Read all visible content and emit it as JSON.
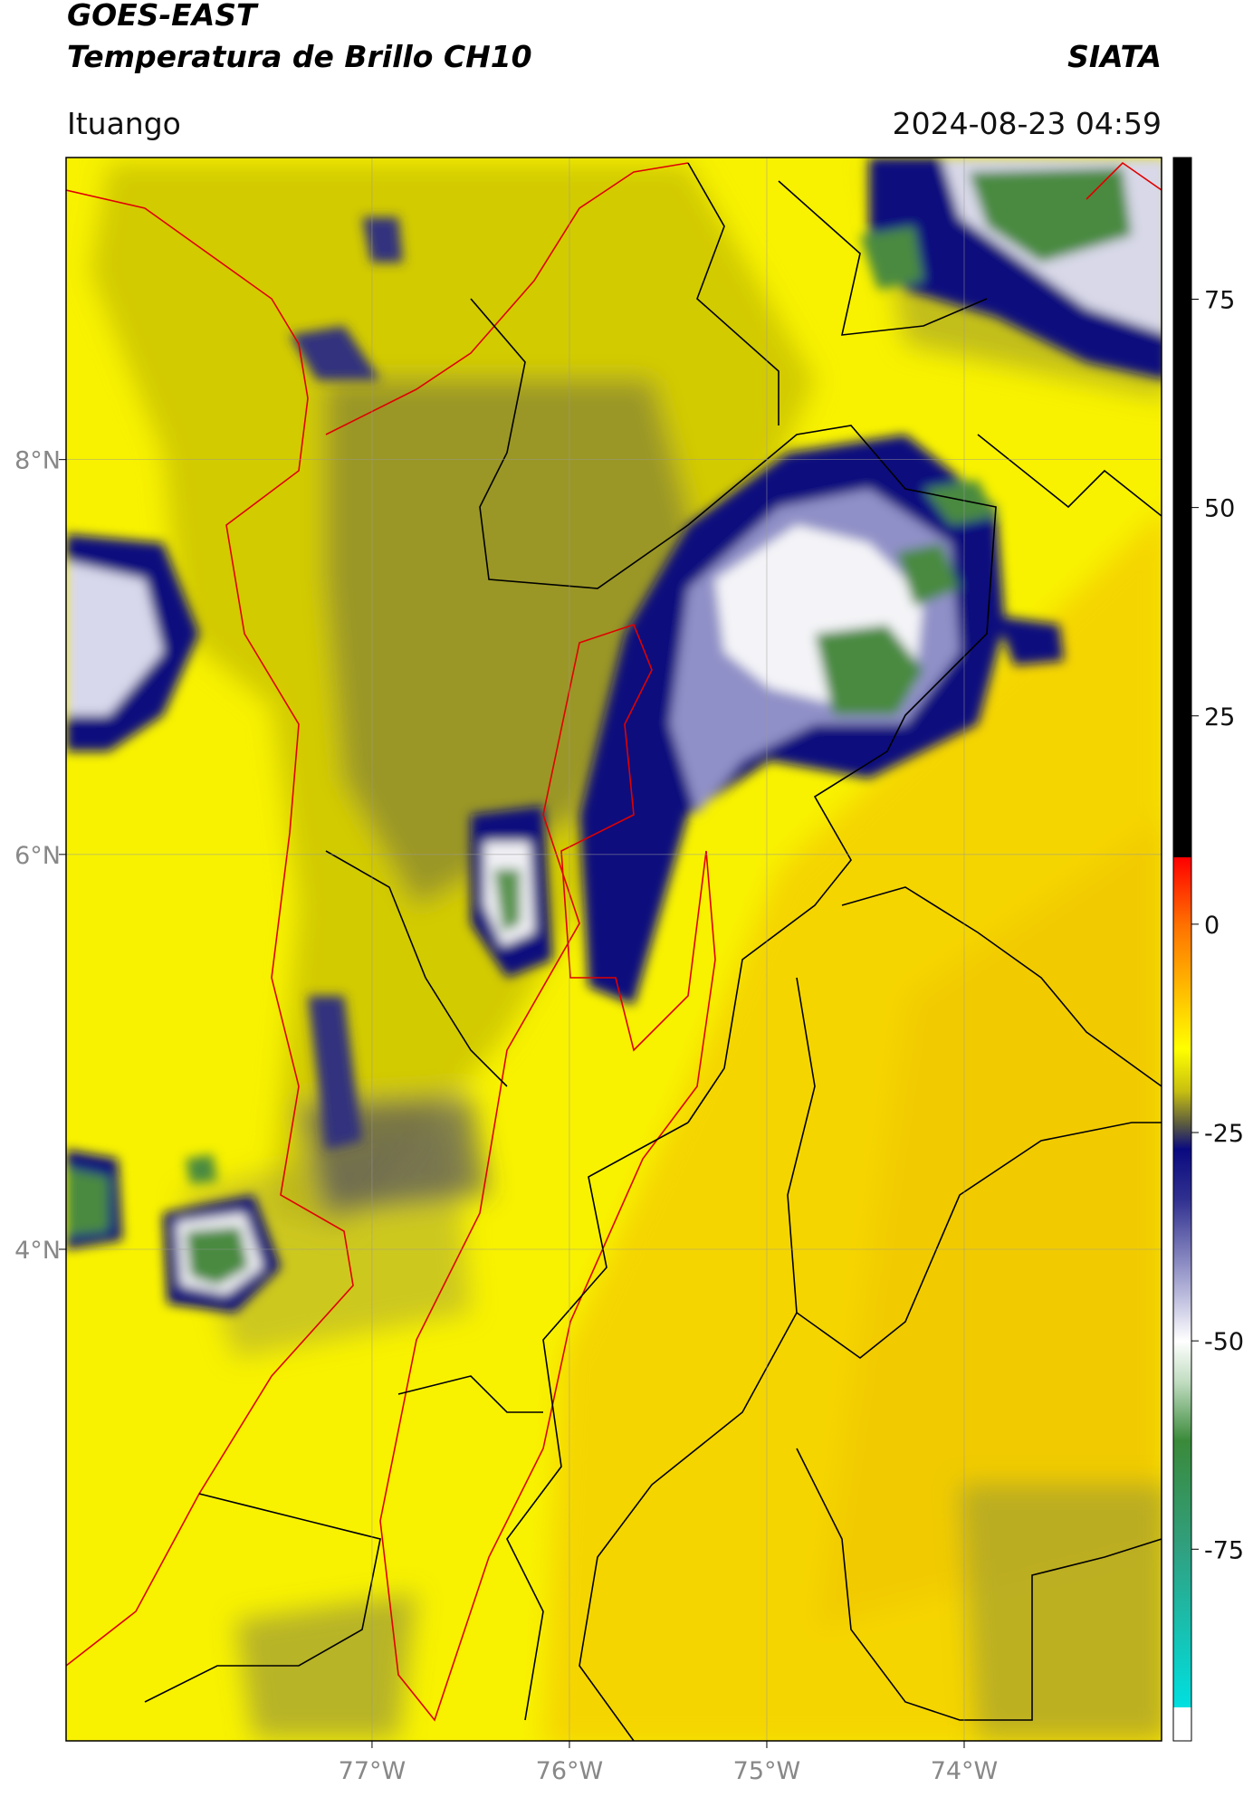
{
  "header": {
    "title": "GOES-EAST",
    "subtitle": "Temperatura de Brillo CH10",
    "agency": "SIATA",
    "location": "Ituango",
    "datetime": "2024-08-23 04:59"
  },
  "map": {
    "xlim": [
      -78.55,
      -73.0
    ],
    "ylim": [
      1.51,
      9.53
    ],
    "xticks": [
      {
        "value": -77,
        "label": "77°W"
      },
      {
        "value": -76,
        "label": "76°W"
      },
      {
        "value": -75,
        "label": "75°W"
      },
      {
        "value": -74,
        "label": "74°W"
      }
    ],
    "yticks": [
      {
        "value": 8,
        "label": "8°N"
      },
      {
        "value": 6,
        "label": "6°N"
      },
      {
        "value": 4,
        "label": "4°N"
      }
    ],
    "grid": true
  },
  "colorbar": {
    "lim": [
      -98,
      92
    ],
    "ticks": [
      75,
      50,
      25,
      0,
      -25,
      -50,
      -75
    ],
    "colormap": [
      [
        92,
        "#000000"
      ],
      [
        8,
        "#000000"
      ],
      [
        8,
        "#ff0000"
      ],
      [
        0,
        "#ff7000"
      ],
      [
        -10,
        "#ffd000"
      ],
      [
        -15,
        "#ffff00"
      ],
      [
        -20,
        "#c8c010"
      ],
      [
        -24,
        "#5a5a40"
      ],
      [
        -27,
        "#0a0a80"
      ],
      [
        -33,
        "#303090"
      ],
      [
        -45,
        "#c0c0e0"
      ],
      [
        -50,
        "#ffffff"
      ],
      [
        -55,
        "#c0dcc0"
      ],
      [
        -62,
        "#3a8a3a"
      ],
      [
        -75,
        "#30a080"
      ],
      [
        -94,
        "#00e0e0"
      ],
      [
        -94,
        "#ffffff"
      ],
      [
        -98,
        "#ffffff"
      ]
    ]
  }
}
